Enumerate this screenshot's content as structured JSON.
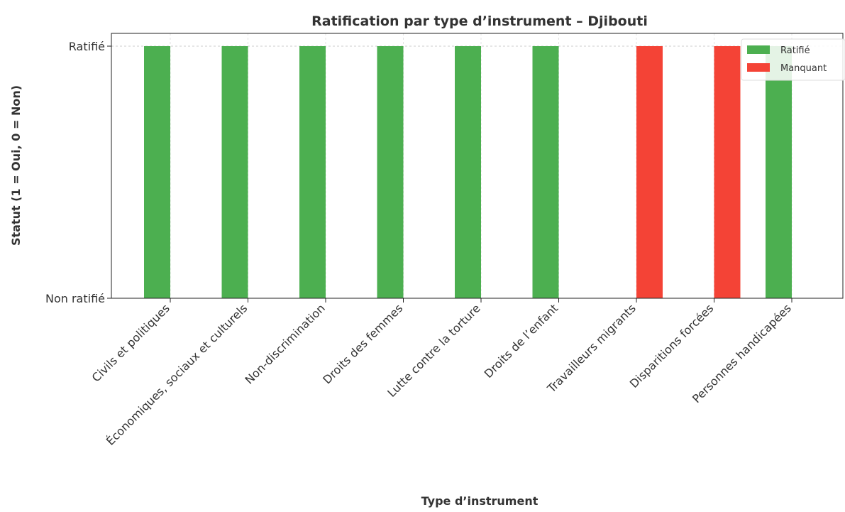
{
  "chart_data": {
    "type": "bar",
    "title": "Ratification par type d’instrument – Djibouti",
    "xlabel": "Type d’instrument",
    "ylabel": "Statut (1 = Oui, 0 = Non)",
    "categories": [
      "Civils et politiques",
      "Économiques, sociaux et culturels",
      "Non-discrimination",
      "Droits des femmes",
      "Lutte contre la torture",
      "Droits de l’enfant",
      "Travailleurs migrants",
      "Disparitions forcées",
      "Personnes handicapées"
    ],
    "series": [
      {
        "name": "Ratifié",
        "color": "#4caf50",
        "values": [
          1,
          1,
          1,
          1,
          1,
          1,
          0,
          0,
          1
        ]
      },
      {
        "name": "Manquant",
        "color": "#f44336",
        "values": [
          0,
          0,
          0,
          0,
          0,
          0,
          1,
          1,
          0
        ]
      }
    ],
    "yticks": [
      {
        "value": 0,
        "label": "Non ratifié"
      },
      {
        "value": 1,
        "label": "Ratifié"
      }
    ],
    "ylim": [
      0,
      1.05
    ],
    "grid": "horizontal-dashed",
    "legend_position": "top-right"
  }
}
